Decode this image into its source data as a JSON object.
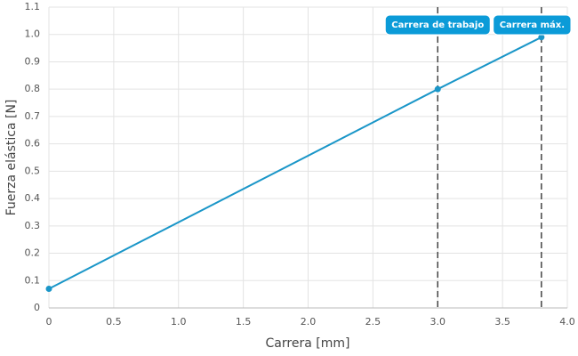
{
  "chart_data": {
    "type": "line",
    "xlabel": "Carrera [mm]",
    "ylabel": "Fuerza elástica [N]",
    "x": [
      0,
      3.0,
      3.8
    ],
    "series": [
      {
        "color": "#1a96c8",
        "values": [
          0.07,
          0.8,
          0.99
        ]
      }
    ],
    "xlim": [
      0,
      4.0
    ],
    "xticks": [
      0,
      0.5,
      {
        "value": 1,
        "label": "1.0"
      },
      1.5,
      {
        "value": 2,
        "label": "2.0"
      },
      2.5,
      {
        "value": 3,
        "label": "3.0"
      },
      3.5,
      {
        "value": 4,
        "label": "4.0"
      }
    ],
    "ylim": [
      0,
      1.1
    ],
    "yticks": [
      0,
      0.1,
      0.2,
      0.3,
      0.4,
      0.5,
      0.6,
      0.7,
      0.8,
      0.9,
      {
        "value": 1,
        "label": "1.0"
      },
      1.1
    ],
    "grid": true,
    "annotations": [
      {
        "x": 3.0,
        "label": "Carrera de trabajo",
        "color": "#0b9bd8"
      },
      {
        "x": 3.8,
        "label": "Carrera máx.",
        "color": "#0b9bd8"
      }
    ]
  }
}
